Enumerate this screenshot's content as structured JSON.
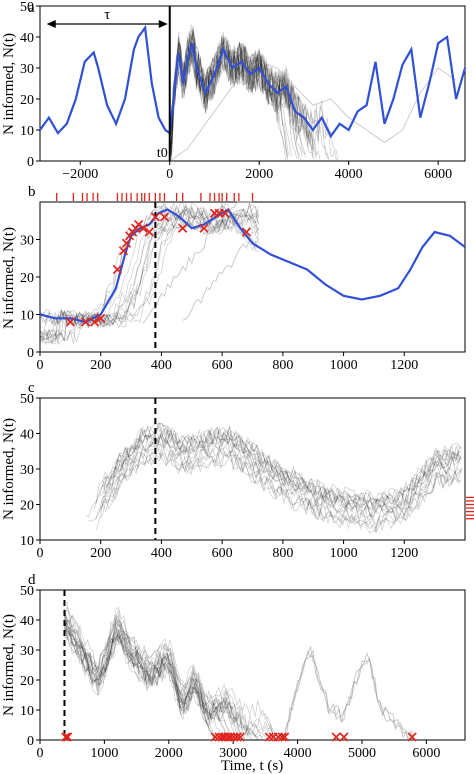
{
  "chart_data": [
    {
      "panel": "a",
      "type": "line",
      "ylabel": "N informed, N(t)",
      "xlim": [
        -2900,
        6600
      ],
      "ylim": [
        0,
        50
      ],
      "xticks": [
        -2000,
        0,
        2000,
        4000,
        6000
      ],
      "yticks": [
        0,
        10,
        20,
        30,
        40,
        50
      ],
      "annotations": [
        "τ",
        "t0"
      ],
      "tau_span": [
        -2750,
        0
      ],
      "t0": 0,
      "series": [
        {
          "role": "blue",
          "x": [
            -2900,
            -2700,
            -2500,
            -2300,
            -2100,
            -1900,
            -1700,
            -1600,
            -1400,
            -1200,
            -1000,
            -800,
            -700,
            -550,
            -400,
            -250,
            -100,
            0,
            100,
            200,
            300,
            400,
            500,
            600,
            800,
            1000,
            1200,
            1400,
            1600,
            1800,
            2000,
            2200,
            2400,
            2600,
            2800,
            3000,
            3200,
            3400,
            3600,
            3800,
            4000,
            4200,
            4400,
            4600,
            4800,
            5000,
            5200,
            5400,
            5600,
            5800,
            6000,
            6200,
            6400,
            6600
          ],
          "y": [
            10,
            14,
            9,
            12,
            20,
            32,
            35,
            30,
            18,
            12,
            20,
            36,
            40,
            43,
            25,
            14,
            10,
            9,
            22,
            35,
            25,
            33,
            38,
            30,
            22,
            28,
            36,
            30,
            32,
            28,
            30,
            25,
            22,
            24,
            16,
            14,
            10,
            14,
            8,
            12,
            10,
            16,
            18,
            32,
            12,
            20,
            31,
            36,
            14,
            25,
            38,
            40,
            20,
            30
          ]
        },
        {
          "role": "light",
          "x": [
            0,
            400,
            800,
            1200,
            1600,
            2000,
            2400,
            2800,
            3200,
            3600,
            4000,
            4400,
            4800,
            5200,
            5600,
            6000,
            6400
          ],
          "y": [
            0,
            4,
            12,
            20,
            28,
            32,
            30,
            24,
            18,
            20,
            14,
            10,
            6,
            10,
            22,
            30,
            26
          ]
        }
      ]
    },
    {
      "panel": "b",
      "type": "line",
      "ylabel": "N informed, N(t)",
      "xlim": [
        0,
        1400
      ],
      "ylim": [
        0,
        40
      ],
      "xticks": [
        0,
        200,
        400,
        600,
        800,
        1000,
        1200
      ],
      "yticks": [
        0,
        10,
        20,
        30
      ],
      "dashed_x": 380,
      "series": [
        {
          "role": "blue",
          "x": [
            0,
            50,
            100,
            150,
            200,
            250,
            280,
            300,
            330,
            360,
            390,
            420,
            460,
            500,
            540,
            580,
            620,
            660,
            700,
            760,
            820,
            880,
            940,
            1000,
            1060,
            1120,
            1180,
            1220,
            1260,
            1300,
            1350,
            1400
          ],
          "y": [
            10,
            9,
            9,
            8,
            10,
            17,
            26,
            31,
            33,
            34,
            37,
            38,
            36,
            33,
            34,
            36,
            38,
            33,
            29,
            26,
            24,
            22,
            18,
            15,
            14,
            15,
            17,
            22,
            28,
            32,
            31,
            28
          ]
        }
      ],
      "markers": {
        "x": [
          100,
          150,
          180,
          200,
          255,
          275,
          285,
          295,
          305,
          315,
          325,
          340,
          360,
          380,
          410,
          470,
          540,
          575,
          590,
          610,
          680
        ],
        "y": [
          8,
          8,
          8,
          9,
          22,
          27,
          29,
          31,
          32,
          33,
          34,
          33,
          32,
          36,
          36,
          33,
          33,
          37,
          37,
          37,
          32
        ]
      },
      "rug_x": [
        55,
        110,
        140,
        155,
        175,
        190,
        255,
        270,
        285,
        300,
        320,
        335,
        345,
        360,
        380,
        395,
        410,
        450,
        470,
        530,
        560,
        575,
        590,
        600,
        615,
        640,
        655,
        700
      ]
    },
    {
      "panel": "c",
      "type": "line",
      "ylabel": "N informed, N(t)",
      "xlim": [
        0,
        1400
      ],
      "ylim": [
        10,
        50
      ],
      "xticks": [
        0,
        200,
        400,
        600,
        800,
        1000,
        1200
      ],
      "yticks": [
        10,
        20,
        30,
        40,
        50
      ],
      "dashed_x": 380,
      "rug_y": [
        16,
        17,
        18,
        19,
        20,
        21,
        22
      ]
    },
    {
      "panel": "d",
      "type": "line",
      "xlabel": "Time, t (s)",
      "ylabel": "N informed, N(t)",
      "xlim": [
        0,
        6600
      ],
      "ylim": [
        0,
        50
      ],
      "xticks": [
        0,
        1000,
        2000,
        3000,
        4000,
        5000,
        6000
      ],
      "yticks": [
        0,
        10,
        20,
        30,
        40,
        50
      ],
      "dashed_x": 380,
      "markers_x": [
        400,
        430,
        2720,
        2780,
        2830,
        2870,
        2920,
        2960,
        3010,
        3060,
        3110,
        3560,
        3620,
        3700,
        3760,
        3800,
        4600,
        4720,
        5780
      ]
    }
  ]
}
